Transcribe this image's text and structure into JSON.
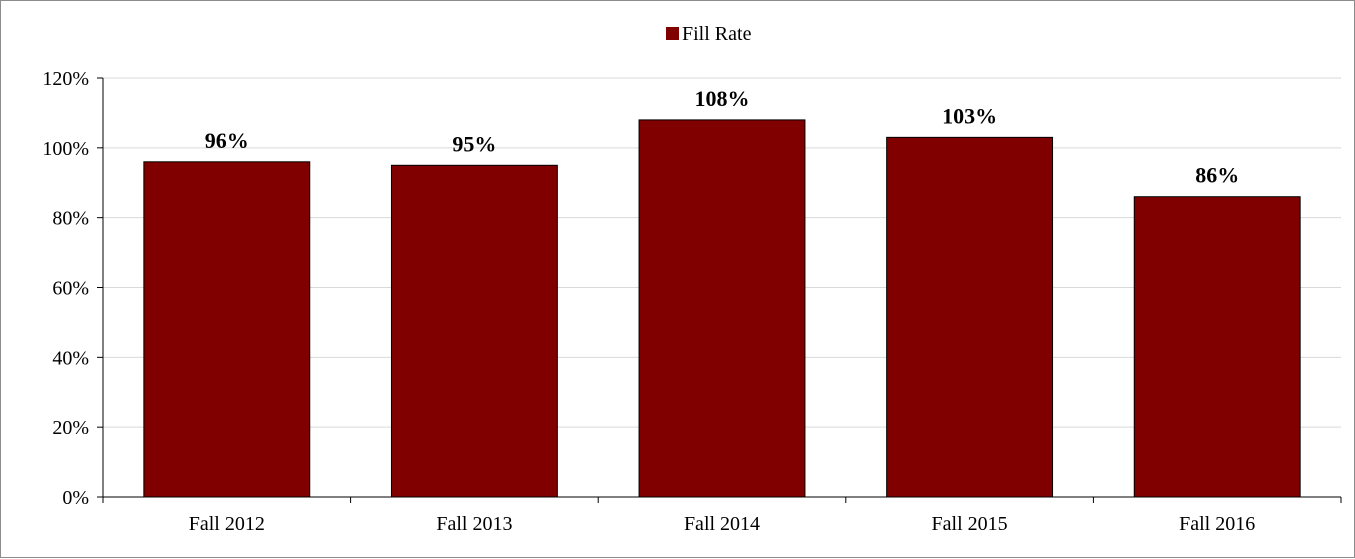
{
  "chart_data": {
    "type": "bar",
    "categories": [
      "Fall 2012",
      "Fall 2013",
      "Fall 2014",
      "Fall 2015",
      "Fall 2016"
    ],
    "series": [
      {
        "name": "Fill Rate",
        "values": [
          96,
          95,
          108,
          103,
          86
        ],
        "labels": [
          "96%",
          "95%",
          "108%",
          "103%",
          "86%"
        ],
        "color": "#800000"
      }
    ],
    "ylim": [
      0,
      120
    ],
    "yticks": [
      0,
      20,
      40,
      60,
      80,
      100,
      120
    ],
    "ytick_labels": [
      "0%",
      "20%",
      "40%",
      "60%",
      "80%",
      "100%",
      "120%"
    ],
    "grid": true,
    "legend": {
      "placement": "top-center",
      "entries": [
        "Fill Rate"
      ]
    },
    "colors": {
      "bar": "#800000",
      "grid": "#d9d9d9",
      "axis": "#000000"
    }
  }
}
